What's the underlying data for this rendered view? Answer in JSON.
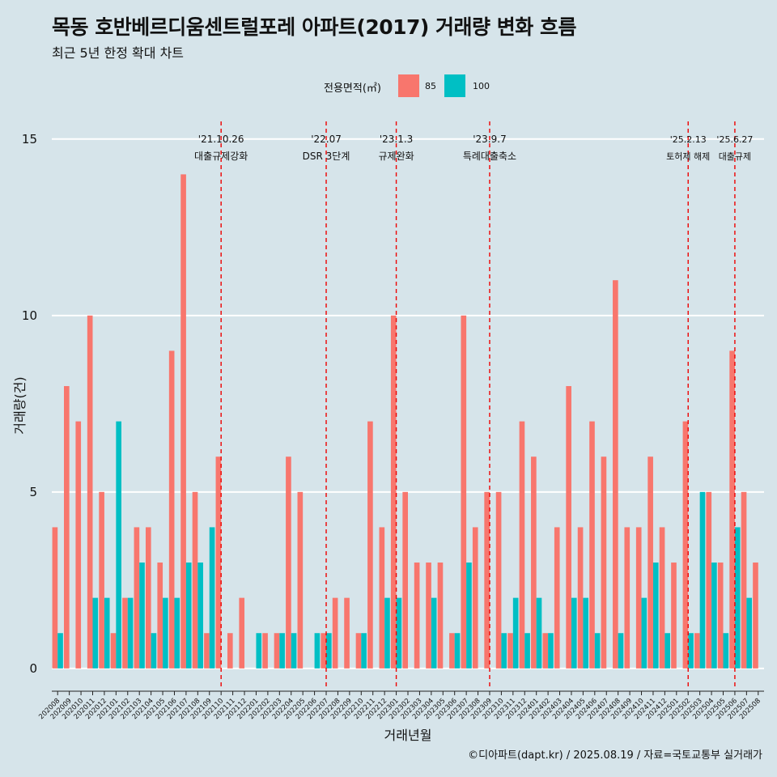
{
  "header": {
    "title": "목동 호반베르디움센트럴포레 아파트(2017) 거래량 변화 흐름",
    "subtitle": "최근 5년 한정 확대 차트"
  },
  "legend": {
    "title": "전용면적(㎡)",
    "items": [
      {
        "label": "85",
        "color": "#f8766d"
      },
      {
        "label": "100",
        "color": "#00bfc4"
      }
    ]
  },
  "caption": "©디아파트(dapt.kr) / 2025.08.19 / 자료=국토교통부 실거래가",
  "chart_data": {
    "type": "bar",
    "xlabel": "거래년월",
    "ylabel": "거래량(건)",
    "ylim": [
      -0.6,
      15.5
    ],
    "yticks": [
      0,
      5,
      10,
      15
    ],
    "categories": [
      "202008",
      "202009",
      "202010",
      "202011",
      "202012",
      "202101",
      "202102",
      "202103",
      "202104",
      "202105",
      "202106",
      "202107",
      "202108",
      "202109",
      "202110",
      "202111",
      "202112",
      "202201",
      "202202",
      "202203",
      "202204",
      "202205",
      "202206",
      "202207",
      "202208",
      "202209",
      "202210",
      "202211",
      "202212",
      "202301",
      "202302",
      "202303",
      "202304",
      "202305",
      "202306",
      "202307",
      "202308",
      "202309",
      "202310",
      "202311",
      "202312",
      "202401",
      "202402",
      "202403",
      "202404",
      "202405",
      "202406",
      "202407",
      "202408",
      "202409",
      "202410",
      "202411",
      "202412",
      "202501",
      "202502",
      "202503",
      "202504",
      "202505",
      "202506",
      "202507",
      "202508"
    ],
    "series": [
      {
        "name": "85",
        "color": "#f8766d",
        "values": [
          4,
          8,
          7,
          10,
          5,
          1,
          2,
          4,
          4,
          3,
          9,
          14,
          5,
          1,
          6,
          1,
          2,
          0,
          1,
          1,
          6,
          5,
          0,
          1,
          2,
          2,
          1,
          7,
          4,
          10,
          5,
          3,
          3,
          3,
          1,
          10,
          4,
          5,
          5,
          1,
          7,
          6,
          1,
          4,
          8,
          4,
          7,
          6,
          11,
          4,
          4,
          6,
          4,
          3,
          7,
          1,
          5,
          3,
          9,
          5,
          3
        ]
      },
      {
        "name": "100",
        "color": "#00bfc4",
        "values": [
          1,
          0,
          0,
          2,
          2,
          7,
          2,
          3,
          1,
          2,
          2,
          3,
          3,
          4,
          0,
          0,
          0,
          1,
          0,
          1,
          1,
          0,
          1,
          1,
          0,
          0,
          1,
          0,
          2,
          2,
          0,
          0,
          2,
          0,
          1,
          3,
          0,
          0,
          1,
          2,
          1,
          2,
          1,
          0,
          2,
          2,
          1,
          0,
          1,
          0,
          2,
          3,
          1,
          0,
          1,
          5,
          3,
          1,
          4,
          2,
          0
        ]
      }
    ],
    "annotations": [
      {
        "date": "'21.10.26",
        "text": "대출규제강화",
        "x_pos": 14.5
      },
      {
        "date": "'22.07",
        "text": "DSR 3단계",
        "x_pos": 23.5
      },
      {
        "date": "'23.1.3",
        "text": "규제완화",
        "x_pos": 29.5
      },
      {
        "date": "'23.9.7",
        "text": "특례대출축소",
        "x_pos": 37.5
      },
      {
        "date": "'25.2.13",
        "text": "토허제 해제",
        "x_pos": 54.5
      },
      {
        "date": "'25.6.27",
        "text": "대출규제",
        "x_pos": 58.5
      }
    ]
  }
}
